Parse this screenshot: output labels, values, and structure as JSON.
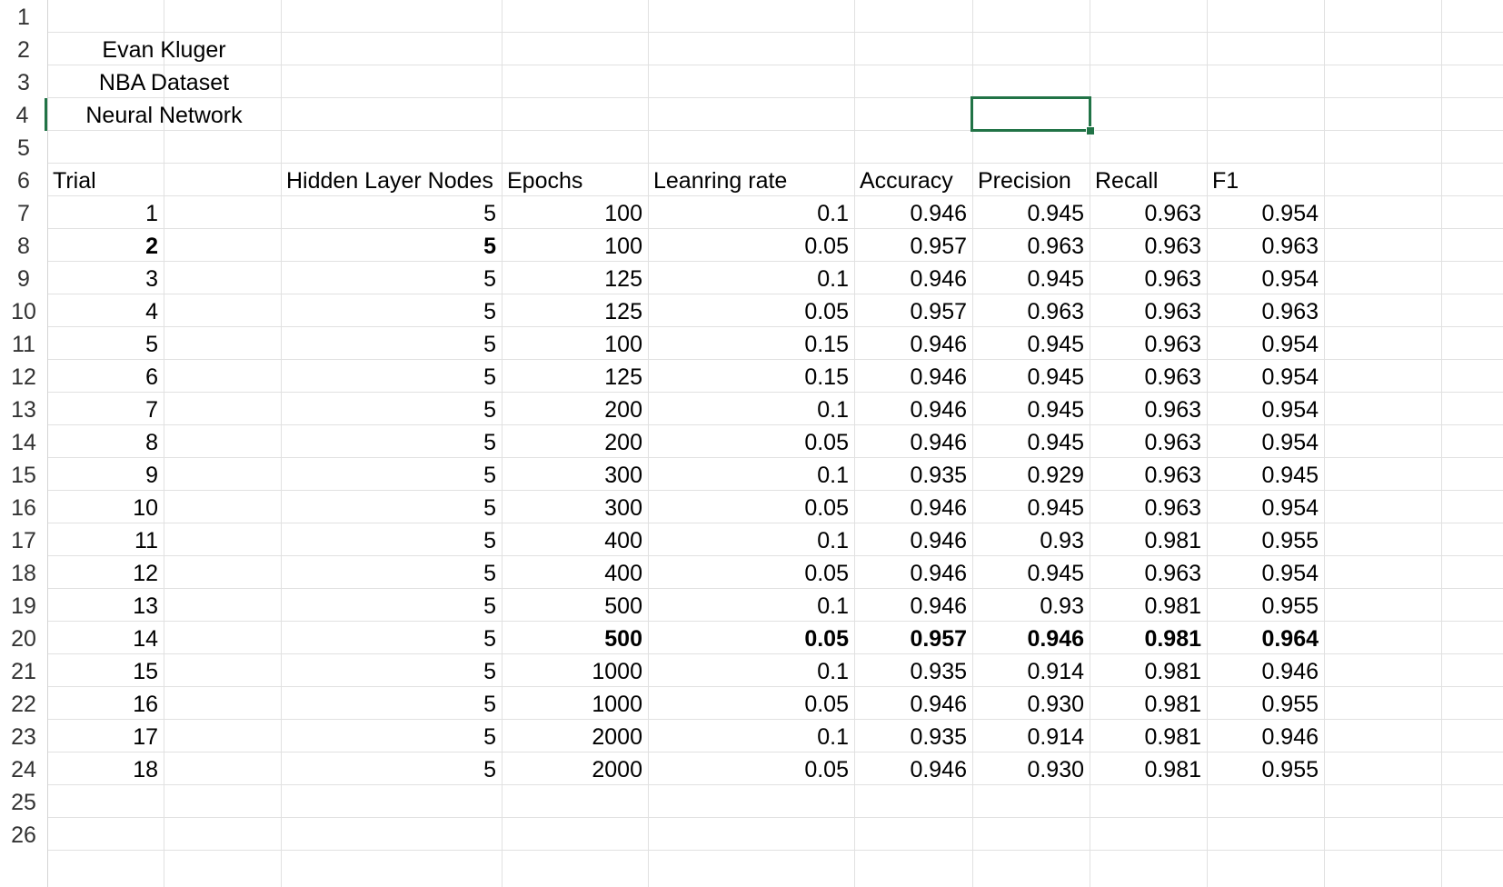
{
  "row_numbers": [
    "1",
    "2",
    "3",
    "4",
    "5",
    "6",
    "7",
    "8",
    "9",
    "10",
    "11",
    "12",
    "13",
    "14",
    "15",
    "16",
    "17",
    "18",
    "19",
    "20",
    "21",
    "22",
    "23",
    "24",
    "25",
    "26"
  ],
  "active_row": "4",
  "colors": {
    "selection": "#217346",
    "gridline": "#e1e1e1"
  },
  "info": {
    "author": "Evan Kluger",
    "dataset": "NBA Dataset",
    "model": "Neural Network"
  },
  "table": {
    "headers": [
      "Trial",
      "Hidden Layer Nodes",
      "Epochs",
      "Leanring rate",
      "Accuracy",
      "Precision",
      "Recall",
      "F1"
    ],
    "rows": [
      [
        "1",
        "5",
        "100",
        "0.1",
        "0.946",
        "0.945",
        "0.963",
        "0.954"
      ],
      [
        "2",
        "5",
        "100",
        "0.05",
        "0.957",
        "0.963",
        "0.963",
        "0.963"
      ],
      [
        "3",
        "5",
        "125",
        "0.1",
        "0.946",
        "0.945",
        "0.963",
        "0.954"
      ],
      [
        "4",
        "5",
        "125",
        "0.05",
        "0.957",
        "0.963",
        "0.963",
        "0.963"
      ],
      [
        "5",
        "5",
        "100",
        "0.15",
        "0.946",
        "0.945",
        "0.963",
        "0.954"
      ],
      [
        "6",
        "5",
        "125",
        "0.15",
        "0.946",
        "0.945",
        "0.963",
        "0.954"
      ],
      [
        "7",
        "5",
        "200",
        "0.1",
        "0.946",
        "0.945",
        "0.963",
        "0.954"
      ],
      [
        "8",
        "5",
        "200",
        "0.05",
        "0.946",
        "0.945",
        "0.963",
        "0.954"
      ],
      [
        "9",
        "5",
        "300",
        "0.1",
        "0.935",
        "0.929",
        "0.963",
        "0.945"
      ],
      [
        "10",
        "5",
        "300",
        "0.05",
        "0.946",
        "0.945",
        "0.963",
        "0.954"
      ],
      [
        "11",
        "5",
        "400",
        "0.1",
        "0.946",
        "0.93",
        "0.981",
        "0.955"
      ],
      [
        "12",
        "5",
        "400",
        "0.05",
        "0.946",
        "0.945",
        "0.963",
        "0.954"
      ],
      [
        "13",
        "5",
        "500",
        "0.1",
        "0.946",
        "0.93",
        "0.981",
        "0.955"
      ],
      [
        "14",
        "5",
        "500",
        "0.05",
        "0.957",
        "0.946",
        "0.981",
        "0.964"
      ],
      [
        "15",
        "5",
        "1000",
        "0.1",
        "0.935",
        "0.914",
        "0.981",
        "0.946"
      ],
      [
        "16",
        "5",
        "1000",
        "0.05",
        "0.946",
        "0.930",
        "0.981",
        "0.955"
      ],
      [
        "17",
        "5",
        "2000",
        "0.1",
        "0.935",
        "0.914",
        "0.981",
        "0.946"
      ],
      [
        "18",
        "5",
        "2000",
        "0.05",
        "0.946",
        "0.930",
        "0.981",
        "0.955"
      ]
    ]
  }
}
